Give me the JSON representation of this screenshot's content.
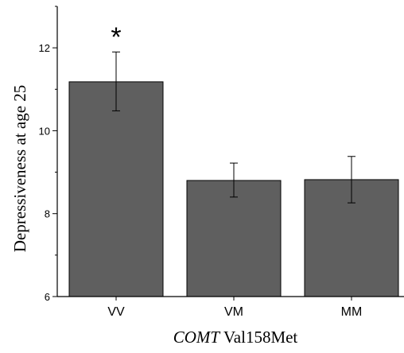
{
  "chart_data": {
    "type": "bar",
    "categories": [
      "VV",
      "VM",
      "MM"
    ],
    "values": [
      11.18,
      8.8,
      8.82
    ],
    "error_upper": [
      11.9,
      9.22,
      9.38
    ],
    "error_lower": [
      10.48,
      8.4,
      8.26
    ],
    "ylabel": "Depressiveness at age 25",
    "xlabel_italic": "COMT",
    "xlabel_rest": " Val158Met",
    "ylim": [
      6,
      13
    ],
    "yticks": [
      6,
      8,
      10,
      12
    ],
    "significance_marker": "*",
    "significance_category": "VV",
    "bar_color": "#5f5f5f",
    "grid": false
  }
}
